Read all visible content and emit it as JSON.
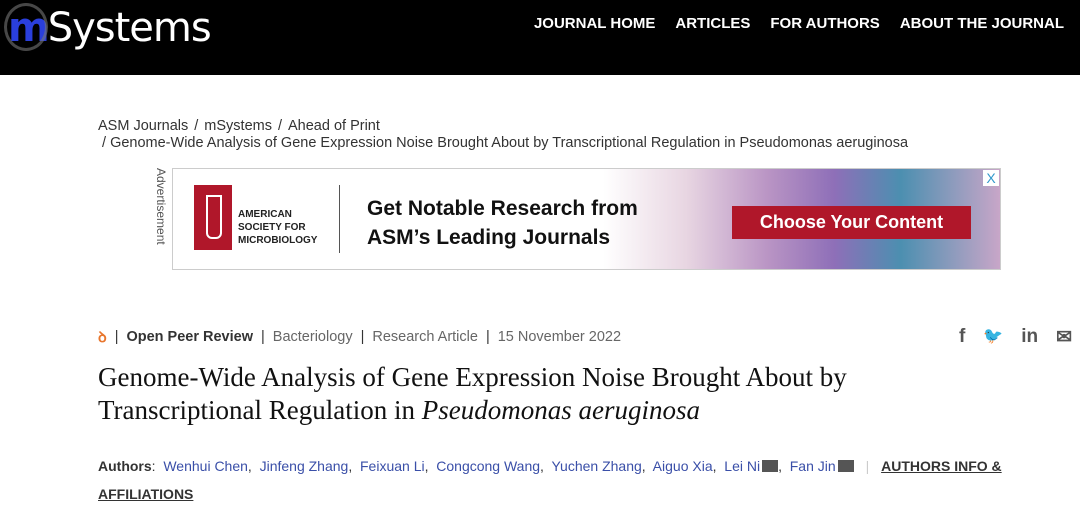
{
  "header": {
    "logo_prefix": "m",
    "logo_suffix": "Systems",
    "nav": [
      "JOURNAL HOME",
      "ARTICLES",
      "FOR AUTHORS",
      "ABOUT THE JOURNAL"
    ]
  },
  "breadcrumb": [
    "ASM Journals",
    "mSystems",
    "Ahead of Print",
    "Genome-Wide Analysis of Gene Expression Noise Brought About by Transcriptional Regulation in Pseudomonas aeruginosa"
  ],
  "ad": {
    "label": "Advertisement",
    "org": [
      "AMERICAN",
      "SOCIETY FOR",
      "MICROBIOLOGY"
    ],
    "headline1": "Get Notable Research from",
    "headline2": "ASM’s Leading Journals",
    "cta": "Choose Your Content",
    "close": "X"
  },
  "meta": {
    "open_access_icon": "open-access-icon",
    "peer": "Open Peer Review",
    "subject": "Bacteriology",
    "type": "Research Article",
    "date": "15 November 2022"
  },
  "share": {
    "facebook": "f",
    "twitter": "🐦",
    "linkedin": "in",
    "email": "✉"
  },
  "article": {
    "title_main": "Genome-Wide Analysis of Gene Expression Noise Brought About by Transcriptional Regulation in ",
    "title_italic": "Pseudomonas aeruginosa"
  },
  "authors": {
    "label": "Authors",
    "list": [
      "Wenhui Chen",
      "Jinfeng Zhang",
      "Feixuan Li",
      "Congcong Wang",
      "Yuchen Zhang",
      "Aiguo Xia",
      "Lei Ni",
      "Fan Jin"
    ],
    "affiliations": "AUTHORS INFO & AFFILIATIONS"
  }
}
